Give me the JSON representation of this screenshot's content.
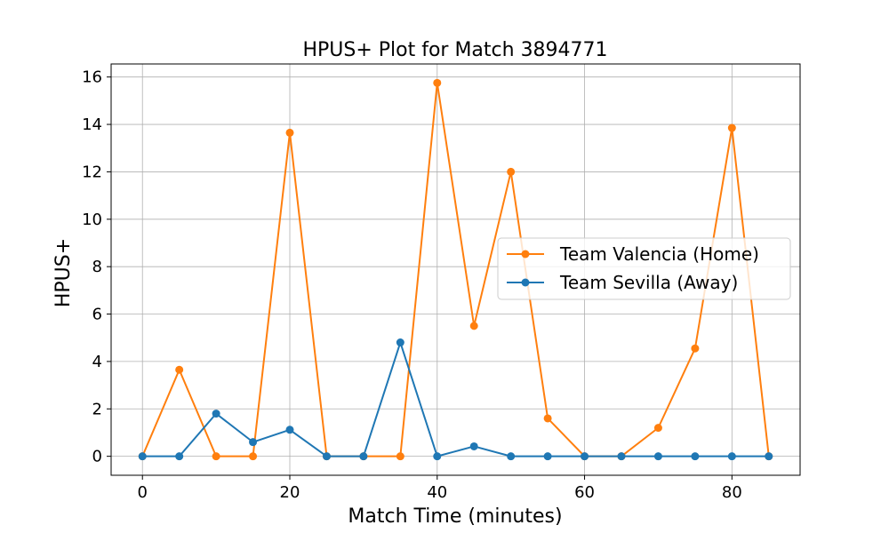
{
  "chart_data": {
    "type": "line",
    "title": "HPUS+ Plot for Match 3894771",
    "xlabel": "Match Time (minutes)",
    "ylabel": "HPUS+",
    "xlim": [
      -4.25,
      89.25
    ],
    "ylim": [
      -0.8,
      16.55
    ],
    "xticks": [
      "0",
      "20",
      "40",
      "60",
      "80"
    ],
    "yticks": [
      "0",
      "2",
      "4",
      "6",
      "8",
      "10",
      "12",
      "14",
      "16"
    ],
    "grid": true,
    "legend_position": "center-right",
    "x": [
      0,
      5,
      10,
      15,
      20,
      25,
      30,
      35,
      40,
      45,
      50,
      55,
      60,
      65,
      70,
      75,
      80,
      85
    ],
    "series": [
      {
        "name": "Team Valencia (Home)",
        "color": "#ff7f0e",
        "values": [
          0,
          3.65,
          0,
          0,
          13.65,
          0,
          0,
          0,
          15.75,
          5.5,
          12.0,
          1.6,
          0,
          0,
          1.2,
          4.55,
          13.85,
          0
        ]
      },
      {
        "name": "Team Sevilla (Away)",
        "color": "#1f77b4",
        "values": [
          0,
          0,
          1.8,
          0.6,
          1.12,
          0,
          0,
          4.8,
          0,
          0.42,
          0,
          0,
          0,
          0,
          0,
          0,
          0,
          0
        ]
      }
    ]
  }
}
